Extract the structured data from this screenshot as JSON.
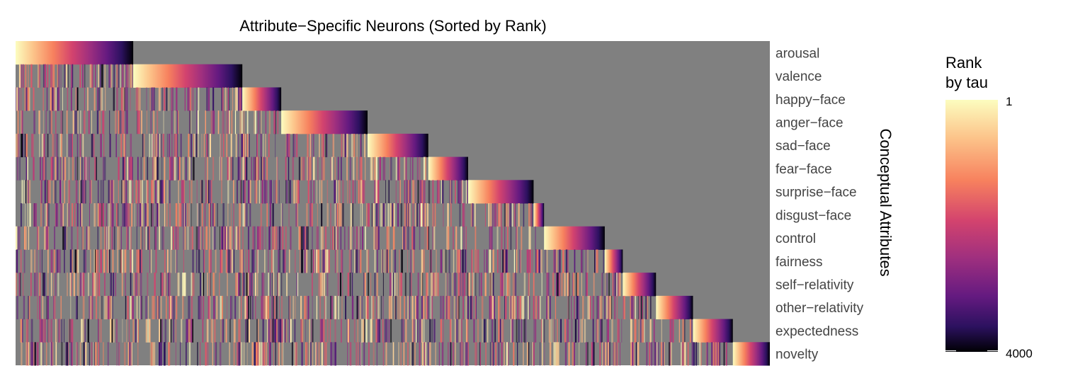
{
  "chart_data": {
    "type": "heatmap",
    "title": "Attribute−Specific Neurons (Sorted by Rank)",
    "xlabel": "",
    "ylabel": "Conceptual Attributes",
    "rows": [
      "arousal",
      "valence",
      "happy−face",
      "anger−face",
      "sad−face",
      "fear−face",
      "surprise−face",
      "disgust−face",
      "control",
      "fairness",
      "self−relativity",
      "other−relativity",
      "expectedness",
      "novelty"
    ],
    "column_groups": [
      {
        "attribute": "arousal",
        "start": 0,
        "neurons": 620
      },
      {
        "attribute": "valence",
        "start": 620,
        "neurons": 575
      },
      {
        "attribute": "happy−face",
        "start": 1195,
        "neurons": 205
      },
      {
        "attribute": "anger−face",
        "start": 1400,
        "neurons": 455
      },
      {
        "attribute": "sad−face",
        "start": 1855,
        "neurons": 320
      },
      {
        "attribute": "fear−face",
        "start": 2175,
        "neurons": 210
      },
      {
        "attribute": "surprise−face",
        "start": 2385,
        "neurons": 345
      },
      {
        "attribute": "disgust−face",
        "start": 2730,
        "neurons": 55
      },
      {
        "attribute": "control",
        "start": 2785,
        "neurons": 320
      },
      {
        "attribute": "fairness",
        "start": 3105,
        "neurons": 95
      },
      {
        "attribute": "self−relativity",
        "start": 3200,
        "neurons": 175
      },
      {
        "attribute": "other−relativity",
        "start": 3375,
        "neurons": 195
      },
      {
        "attribute": "expectedness",
        "start": 3570,
        "neurons": 210
      },
      {
        "attribute": "novelty",
        "start": 3780,
        "neurons": 195
      }
    ],
    "total_neurons": 3975,
    "colorbar": {
      "title": "Rank by tau",
      "title_lines": [
        "Rank",
        "by tau"
      ],
      "range": [
        1,
        4000
      ],
      "tick_labels": [
        "1",
        "4000"
      ],
      "colormap": "magma (reversed)"
    },
    "above_diagonal_color": "#808080"
  }
}
